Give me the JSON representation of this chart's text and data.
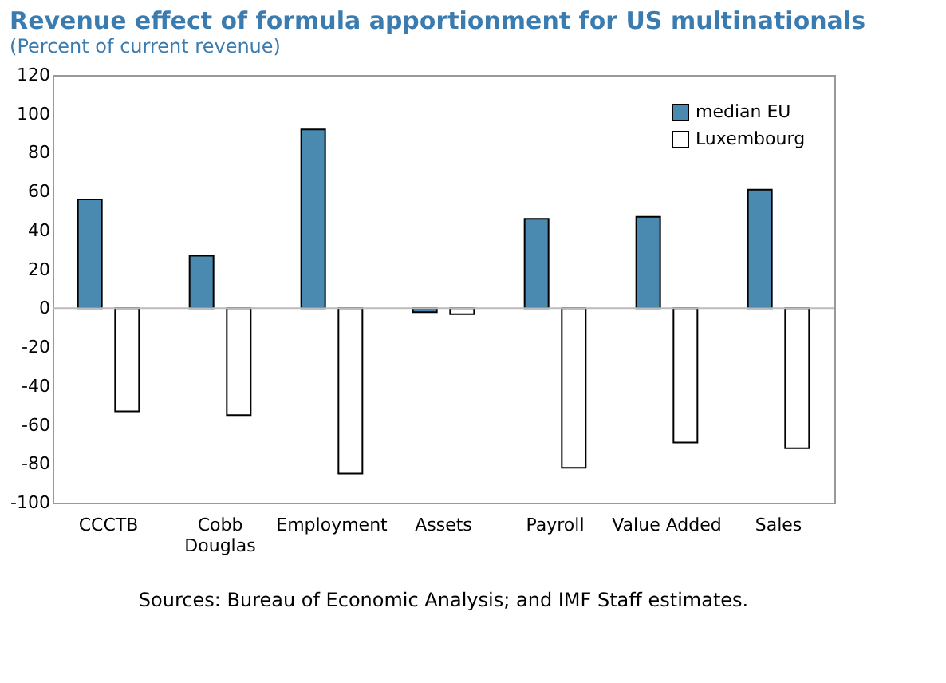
{
  "chart_data": {
    "type": "bar",
    "title": "Revenue effect of formula apportionment for US multinationals",
    "subtitle": "(Percent of current revenue)",
    "categories": [
      "CCCTB",
      "Cobb\nDouglas",
      "Employment",
      "Assets",
      "Payroll",
      "Value Added",
      "Sales"
    ],
    "series": [
      {
        "name": "median EU",
        "color": "#4a8ab0",
        "values": [
          56,
          27,
          92,
          -2,
          46,
          47,
          61
        ]
      },
      {
        "name": "Luxembourg",
        "color": "#ffffff",
        "values": [
          -53,
          -55,
          -85,
          -3,
          -82,
          -69,
          -72
        ]
      }
    ],
    "ylim": [
      -100,
      120
    ],
    "yticks": [
      -100,
      -80,
      -60,
      -40,
      -20,
      0,
      20,
      40,
      60,
      80,
      100,
      120
    ],
    "ref_lines": [
      {
        "axis": "y",
        "value": 0,
        "color": "#bbbbbb"
      }
    ],
    "grid": false,
    "legend": "top right",
    "annotations": [
      "Sources: Bureau of Economic Analysis; and IMF Staff estimates."
    ]
  }
}
